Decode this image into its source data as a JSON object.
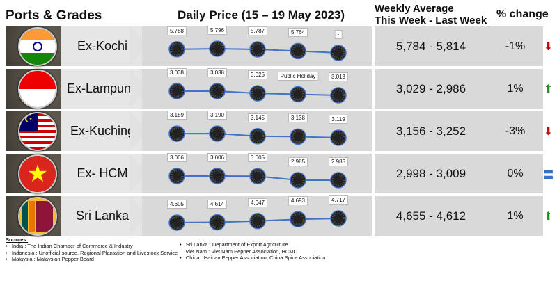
{
  "header": {
    "ports": "Ports & Grades",
    "daily": "Daily Price (15 – 19 May 2023)",
    "weekly1": "Weekly Average",
    "weekly2": "This Week - Last Week",
    "change": "% change"
  },
  "rows": [
    {
      "port": "Ex-Kochi",
      "flag": "india",
      "prices": [
        "5.788",
        "5.796",
        "5.787",
        "5.764",
        "-"
      ],
      "values": [
        5788,
        5796,
        5787,
        5764,
        5740
      ],
      "avg": "5,784 - 5,814",
      "pct": "-1%",
      "trend": "down"
    },
    {
      "port": "Ex-Lampung",
      "flag": "indonesia",
      "prices": [
        "3.038",
        "3.038",
        "3.025",
        "Public Holiday",
        "3.013"
      ],
      "values": [
        3038,
        3038,
        3025,
        3019,
        3013
      ],
      "avg": "3,029 - 2,986",
      "pct": "1%",
      "trend": "up"
    },
    {
      "port": "Ex-Kuching",
      "flag": "malaysia",
      "prices": [
        "3.189",
        "3.190",
        "3.145",
        "3.138",
        "3.119"
      ],
      "values": [
        3189,
        3190,
        3145,
        3138,
        3119
      ],
      "avg": "3,156 - 3,252",
      "pct": "-3%",
      "trend": "down"
    },
    {
      "port": "Ex- HCM",
      "flag": "vietnam",
      "prices": [
        "3.006",
        "3.006",
        "3.005",
        "2.985",
        "2.985"
      ],
      "values": [
        3006,
        3006,
        3005,
        2985,
        2985
      ],
      "avg": "2,998 - 3,009",
      "pct": "0%",
      "trend": "flat"
    },
    {
      "port": "Sri Lanka",
      "flag": "srilanka",
      "prices": [
        "4.605",
        "4.614",
        "4.647",
        "4.693",
        "4.717"
      ],
      "values": [
        4605,
        4614,
        4647,
        4693,
        4717
      ],
      "avg": "4,655 - 4,612",
      "pct": "1%",
      "trend": "up"
    }
  ],
  "colors": {
    "up": "#2e8b2e",
    "down": "#d40000",
    "flat": "#2e75c9",
    "line": "#4472c4"
  },
  "sources": {
    "title": "Sources:",
    "left": [
      "India : The Indian Chamber of Commerce & Industry",
      "Indonesia : Unofficial source, Regional Plantation and Livestock Service",
      "Malaysia : Malaysian Pepper Board"
    ],
    "right": [
      "Sri Lanka : Department of Export Agriculture",
      "Viet Nam : Viet Nam Pepper Association, HCMC",
      "China : Hainan Pepper Association, China Spice Association"
    ]
  }
}
